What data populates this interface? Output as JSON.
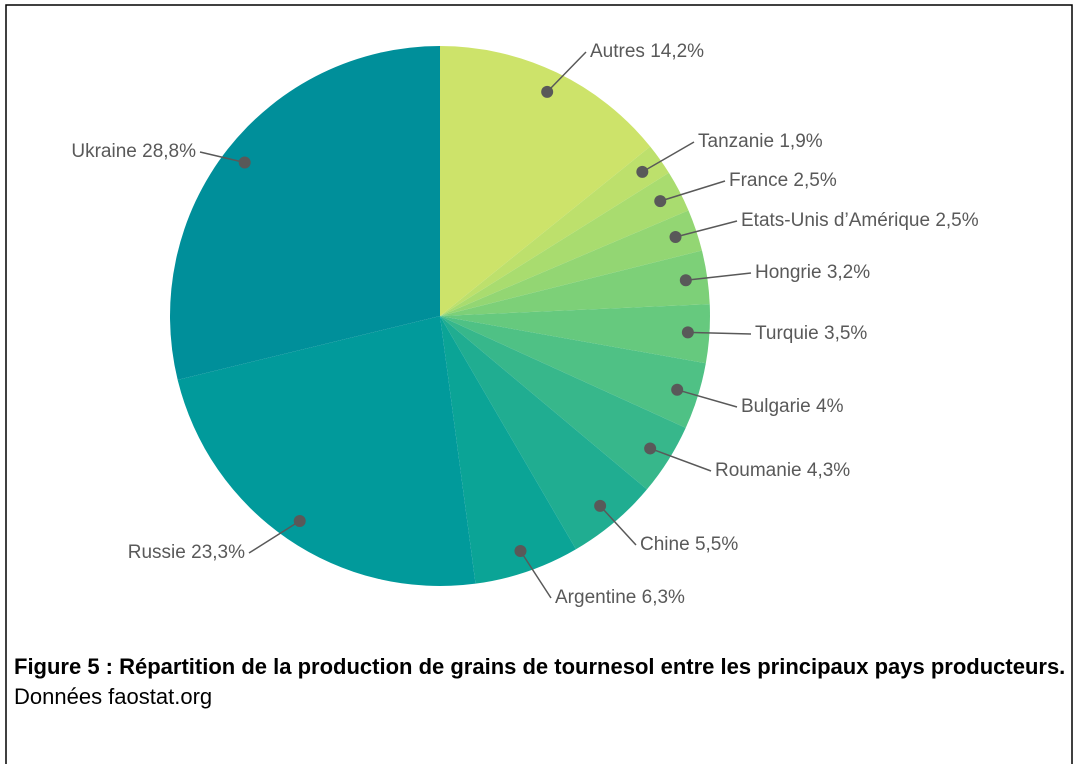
{
  "chart_data": {
    "type": "pie",
    "categories": [
      "Autres",
      "Tanzanie",
      "France",
      "Etats-Unis d’Amérique",
      "Hongrie",
      "Turquie",
      "Bulgarie",
      "Roumanie",
      "Chine",
      "Argentine",
      "Russie",
      "Ukraine"
    ],
    "values": [
      14.2,
      1.9,
      2.5,
      2.5,
      3.2,
      3.5,
      4,
      4.3,
      5.5,
      6.3,
      23.3,
      28.8
    ],
    "value_labels": [
      "14,2%",
      "1,9%",
      "2,5%",
      "2,5%",
      "3,2%",
      "3,5%",
      "4%",
      "4,3%",
      "5,5%",
      "6,3%",
      "23,3%",
      "28,8%"
    ],
    "colors": [
      "#cde36a",
      "#bde06c",
      "#a9dc6f",
      "#93d673",
      "#7dd078",
      "#66c97e",
      "#4fc185",
      "#37b78b",
      "#20ad91",
      "#0ba496",
      "#019a9b",
      "#008f9a"
    ],
    "caption": "Figure 5 : Répartition de la production de grains de tournesol entre les principaux pays producteurs.",
    "source": "Données faostat.org"
  }
}
